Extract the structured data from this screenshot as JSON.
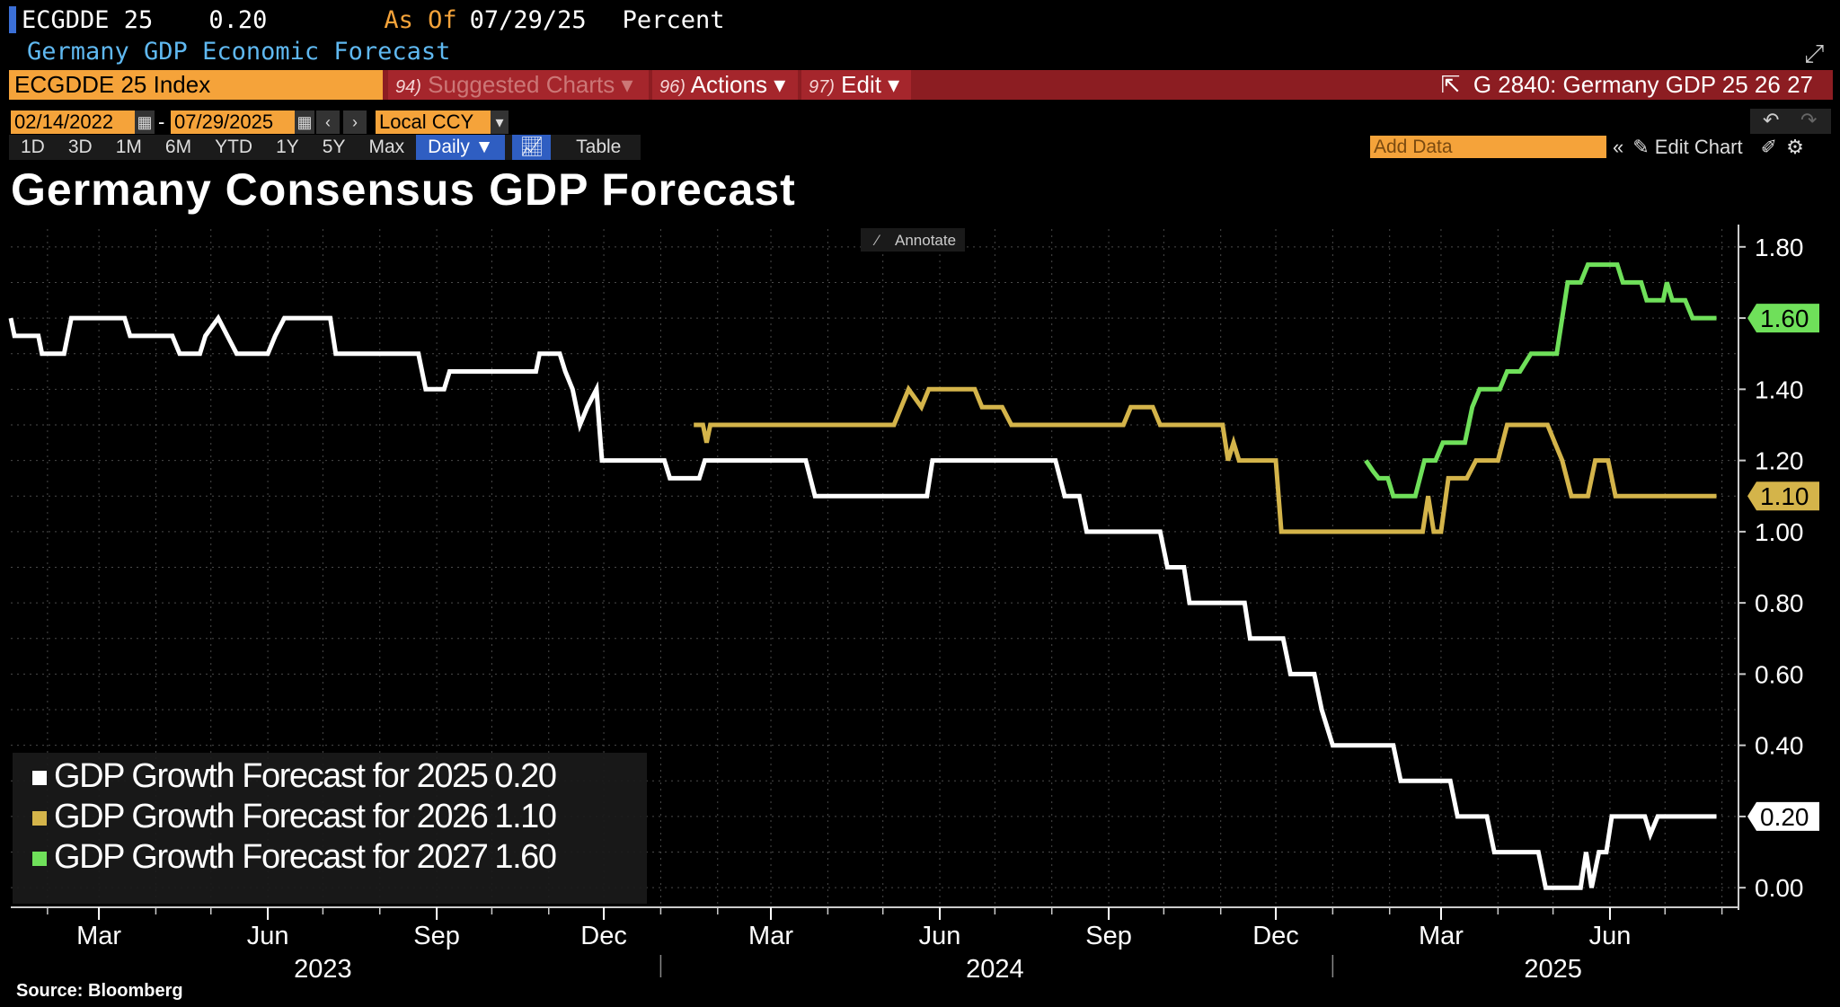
{
  "header": {
    "ticker": "ECGDDE 25",
    "value": "0.20",
    "as_of_label": "As Of",
    "as_of_date": "07/29/25",
    "units": "Percent",
    "subtitle": "Germany GDP Economic Forecast"
  },
  "command_bar": {
    "security": "ECGDDE 25 Index",
    "suggested_num": "94)",
    "suggested_label": "Suggested Charts",
    "actions_num": "96)",
    "actions_label": "Actions",
    "edit_num": "97)",
    "edit_label": "Edit",
    "related": "G 2840: Germany GDP 25 26 27"
  },
  "date_range": {
    "start": "02/14/2022",
    "end": "07/29/2025",
    "currency": "Local CCY"
  },
  "periods": [
    "1D",
    "3D",
    "1M",
    "6M",
    "YTD",
    "1Y",
    "5Y",
    "Max"
  ],
  "frequency": "Daily",
  "table_label": "Table",
  "add_data_placeholder": "Add Data",
  "edit_chart_label": "Edit Chart",
  "annotate_label": "Annotate",
  "source": "Source: Bloomberg",
  "colors": {
    "s2025": "#ffffff",
    "s2026": "#d4b44a",
    "s2027": "#6fe05a",
    "grid": "#555555",
    "accent": "#f5a33a"
  },
  "chart_data": {
    "type": "line",
    "title": "Germany Consensus GDP Forecast",
    "ylim": [
      -0.05,
      1.85
    ],
    "y_ticks": [
      "1.80",
      "1.60",
      "1.40",
      "1.20",
      "1.00",
      "0.80",
      "0.60",
      "0.40",
      "0.20",
      "0.00"
    ],
    "x_range": [
      "2023-01-12",
      "2025-08-10"
    ],
    "x_ticks": [
      {
        "label": "Mar",
        "date": "2023-03-01"
      },
      {
        "label": "Jun",
        "date": "2023-06-01"
      },
      {
        "label": "Sep",
        "date": "2023-09-01"
      },
      {
        "label": "Dec",
        "date": "2023-12-01"
      },
      {
        "label": "Mar",
        "date": "2024-03-01"
      },
      {
        "label": "Jun",
        "date": "2024-06-01"
      },
      {
        "label": "Sep",
        "date": "2024-09-01"
      },
      {
        "label": "Dec",
        "date": "2024-12-01"
      },
      {
        "label": "Mar",
        "date": "2025-03-01"
      },
      {
        "label": "Jun",
        "date": "2025-06-01"
      }
    ],
    "years": [
      {
        "label": "2023",
        "date": "2023-07-01"
      },
      {
        "label": "2024",
        "date": "2024-07-01"
      },
      {
        "label": "2025",
        "date": "2025-05-01"
      }
    ],
    "year_dividers": [
      "2024-01-01",
      "2025-01-01"
    ],
    "grid": true,
    "legend_position": "bottom-left",
    "series": [
      {
        "name": "GDP Growth Forecast for 2025",
        "last": "0.20",
        "color": "#ffffff",
        "points": [
          [
            "2023-01-12",
            1.6
          ],
          [
            "2023-01-14",
            1.55
          ],
          [
            "2023-01-27",
            1.55
          ],
          [
            "2023-01-29",
            1.5
          ],
          [
            "2023-02-10",
            1.5
          ],
          [
            "2023-02-14",
            1.6
          ],
          [
            "2023-03-15",
            1.6
          ],
          [
            "2023-03-18",
            1.55
          ],
          [
            "2023-04-10",
            1.55
          ],
          [
            "2023-04-14",
            1.5
          ],
          [
            "2023-04-25",
            1.5
          ],
          [
            "2023-04-28",
            1.55
          ],
          [
            "2023-05-05",
            1.6
          ],
          [
            "2023-05-10",
            1.55
          ],
          [
            "2023-05-15",
            1.5
          ],
          [
            "2023-06-01",
            1.5
          ],
          [
            "2023-06-05",
            1.55
          ],
          [
            "2023-06-10",
            1.6
          ],
          [
            "2023-07-05",
            1.6
          ],
          [
            "2023-07-08",
            1.5
          ],
          [
            "2023-08-10",
            1.5
          ],
          [
            "2023-08-22",
            1.5
          ],
          [
            "2023-08-26",
            1.4
          ],
          [
            "2023-09-05",
            1.4
          ],
          [
            "2023-09-08",
            1.45
          ],
          [
            "2023-10-25",
            1.45
          ],
          [
            "2023-10-27",
            1.5
          ],
          [
            "2023-11-07",
            1.5
          ],
          [
            "2023-11-10",
            1.45
          ],
          [
            "2023-11-14",
            1.4
          ],
          [
            "2023-11-18",
            1.3
          ],
          [
            "2023-11-22",
            1.35
          ],
          [
            "2023-11-27",
            1.4
          ],
          [
            "2023-11-30",
            1.2
          ],
          [
            "2024-01-03",
            1.2
          ],
          [
            "2024-01-06",
            1.15
          ],
          [
            "2024-01-22",
            1.15
          ],
          [
            "2024-01-25",
            1.2
          ],
          [
            "2024-03-20",
            1.2
          ],
          [
            "2024-03-25",
            1.1
          ],
          [
            "2024-05-25",
            1.1
          ],
          [
            "2024-05-28",
            1.2
          ],
          [
            "2024-08-03",
            1.2
          ],
          [
            "2024-08-08",
            1.1
          ],
          [
            "2024-08-16",
            1.1
          ],
          [
            "2024-08-20",
            1.0
          ],
          [
            "2024-09-29",
            1.0
          ],
          [
            "2024-10-03",
            0.9
          ],
          [
            "2024-10-12",
            0.9
          ],
          [
            "2024-10-15",
            0.8
          ],
          [
            "2024-11-14",
            0.8
          ],
          [
            "2024-11-17",
            0.7
          ],
          [
            "2024-12-05",
            0.7
          ],
          [
            "2024-12-09",
            0.6
          ],
          [
            "2024-12-22",
            0.6
          ],
          [
            "2024-12-26",
            0.5
          ],
          [
            "2025-01-01",
            0.4
          ],
          [
            "2025-02-03",
            0.4
          ],
          [
            "2025-02-07",
            0.3
          ],
          [
            "2025-03-06",
            0.3
          ],
          [
            "2025-03-10",
            0.2
          ],
          [
            "2025-03-26",
            0.2
          ],
          [
            "2025-03-30",
            0.1
          ],
          [
            "2025-04-23",
            0.1
          ],
          [
            "2025-04-27",
            0.0
          ],
          [
            "2025-05-16",
            0.0
          ],
          [
            "2025-05-19",
            0.1
          ],
          [
            "2025-05-22",
            0.0
          ],
          [
            "2025-05-26",
            0.1
          ],
          [
            "2025-05-30",
            0.1
          ],
          [
            "2025-06-02",
            0.2
          ],
          [
            "2025-06-20",
            0.2
          ],
          [
            "2025-06-23",
            0.15
          ],
          [
            "2025-06-27",
            0.2
          ],
          [
            "2025-07-29",
            0.2
          ]
        ]
      },
      {
        "name": "GDP Growth Forecast for 2026",
        "last": "1.10",
        "color": "#d4b44a",
        "points": [
          [
            "2024-01-19",
            1.3
          ],
          [
            "2024-01-24",
            1.3
          ],
          [
            "2024-01-26",
            1.25
          ],
          [
            "2024-01-28",
            1.3
          ],
          [
            "2024-05-07",
            1.3
          ],
          [
            "2024-05-11",
            1.35
          ],
          [
            "2024-05-15",
            1.4
          ],
          [
            "2024-05-22",
            1.35
          ],
          [
            "2024-05-26",
            1.4
          ],
          [
            "2024-06-20",
            1.4
          ],
          [
            "2024-06-24",
            1.35
          ],
          [
            "2024-07-05",
            1.35
          ],
          [
            "2024-07-10",
            1.3
          ],
          [
            "2024-09-09",
            1.3
          ],
          [
            "2024-09-13",
            1.35
          ],
          [
            "2024-09-25",
            1.35
          ],
          [
            "2024-09-29",
            1.3
          ],
          [
            "2024-11-02",
            1.3
          ],
          [
            "2024-11-05",
            1.2
          ],
          [
            "2024-11-08",
            1.25
          ],
          [
            "2024-11-11",
            1.2
          ],
          [
            "2024-12-01",
            1.2
          ],
          [
            "2024-12-04",
            1.0
          ],
          [
            "2025-02-19",
            1.0
          ],
          [
            "2025-02-22",
            1.1
          ],
          [
            "2025-02-25",
            1.0
          ],
          [
            "2025-03-01",
            1.0
          ],
          [
            "2025-03-05",
            1.15
          ],
          [
            "2025-03-15",
            1.15
          ],
          [
            "2025-03-20",
            1.2
          ],
          [
            "2025-04-01",
            1.2
          ],
          [
            "2025-04-06",
            1.3
          ],
          [
            "2025-04-28",
            1.3
          ],
          [
            "2025-05-02",
            1.25
          ],
          [
            "2025-05-06",
            1.2
          ],
          [
            "2025-05-11",
            1.1
          ],
          [
            "2025-05-20",
            1.1
          ],
          [
            "2025-05-24",
            1.2
          ],
          [
            "2025-05-31",
            1.2
          ],
          [
            "2025-06-04",
            1.1
          ],
          [
            "2025-07-29",
            1.1
          ]
        ]
      },
      {
        "name": "GDP Growth Forecast for 2027",
        "last": "1.60",
        "color": "#6fe05a",
        "points": [
          [
            "2025-01-19",
            1.2
          ],
          [
            "2025-01-23",
            1.17
          ],
          [
            "2025-01-26",
            1.15
          ],
          [
            "2025-01-31",
            1.15
          ],
          [
            "2025-02-03",
            1.1
          ],
          [
            "2025-02-15",
            1.1
          ],
          [
            "2025-02-20",
            1.2
          ],
          [
            "2025-02-26",
            1.2
          ],
          [
            "2025-03-02",
            1.25
          ],
          [
            "2025-03-14",
            1.25
          ],
          [
            "2025-03-18",
            1.35
          ],
          [
            "2025-03-22",
            1.4
          ],
          [
            "2025-04-02",
            1.4
          ],
          [
            "2025-04-06",
            1.45
          ],
          [
            "2025-04-13",
            1.45
          ],
          [
            "2025-04-19",
            1.5
          ],
          [
            "2025-05-03",
            1.5
          ],
          [
            "2025-05-06",
            1.6
          ],
          [
            "2025-05-09",
            1.7
          ],
          [
            "2025-05-16",
            1.7
          ],
          [
            "2025-05-20",
            1.75
          ],
          [
            "2025-06-05",
            1.75
          ],
          [
            "2025-06-08",
            1.7
          ],
          [
            "2025-06-18",
            1.7
          ],
          [
            "2025-06-21",
            1.65
          ],
          [
            "2025-06-30",
            1.65
          ],
          [
            "2025-07-02",
            1.7
          ],
          [
            "2025-07-05",
            1.65
          ],
          [
            "2025-07-12",
            1.65
          ],
          [
            "2025-07-16",
            1.6
          ],
          [
            "2025-07-29",
            1.6
          ]
        ]
      }
    ]
  }
}
